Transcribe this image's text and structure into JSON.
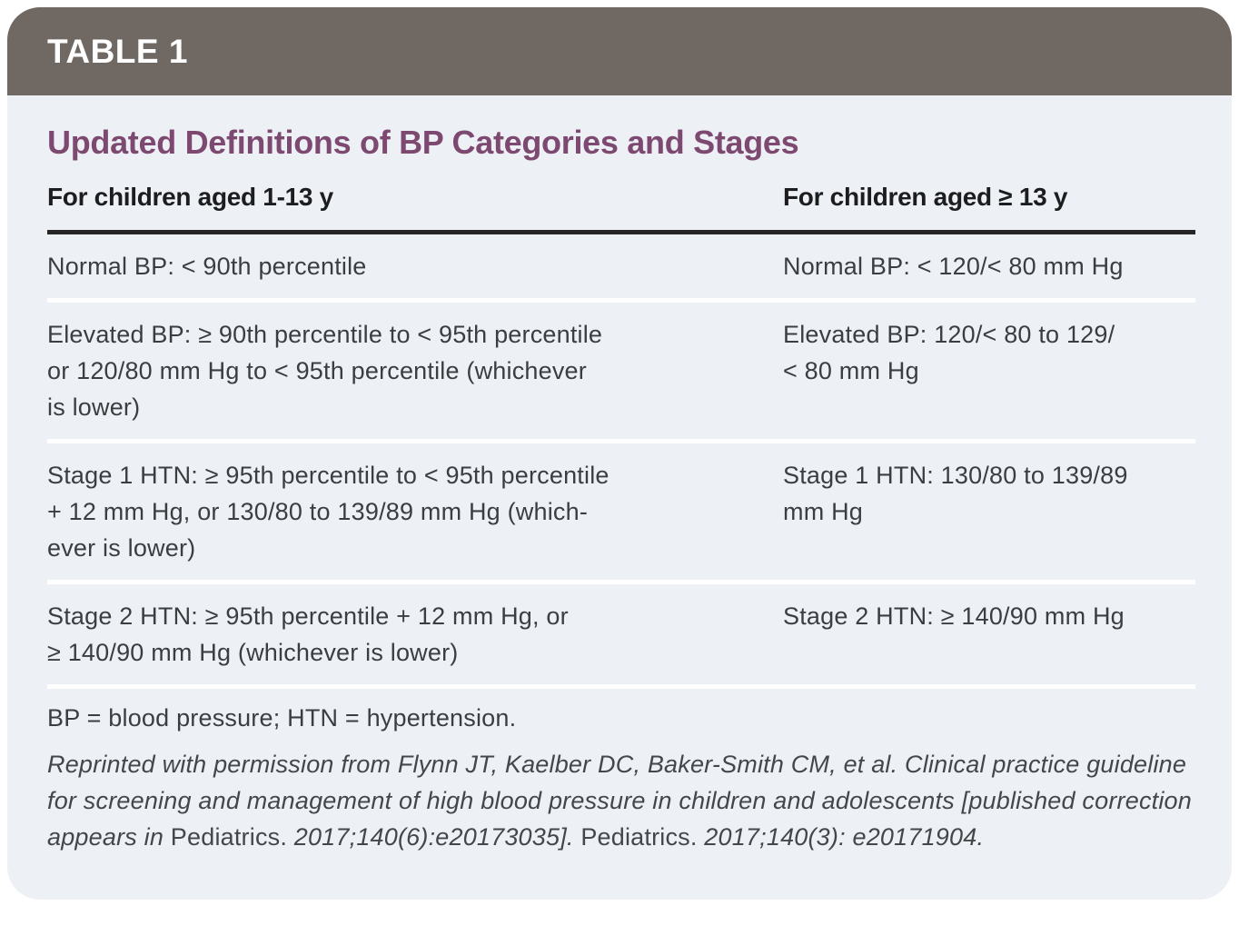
{
  "card": {
    "header_band": {
      "label": "TABLE 1",
      "bg_color": "#6F6863",
      "text_color": "#FFFFFF"
    },
    "body_bg_color": "#EDF1F5",
    "title": {
      "text": "Updated Definitions of BP Categories and Stages",
      "color": "#7D4970"
    },
    "table": {
      "column_headers": [
        "For children aged 1-13 y",
        "For children aged ≥ 13 y"
      ],
      "rows": [
        {
          "left": [
            "Normal BP: < 90th percentile"
          ],
          "right": [
            "Normal BP: < 120/< 80 mm Hg"
          ]
        },
        {
          "left": [
            "Elevated BP: ≥ 90th percentile to < 95th percentile",
            "or 120/80 mm Hg to < 95th percentile (whichever",
            "is lower)"
          ],
          "right": [
            "Elevated BP: 120/< 80 to 129/",
            "< 80 mm Hg"
          ]
        },
        {
          "left": [
            "Stage 1 HTN: ≥ 95th percentile to < 95th percentile",
            "+ 12 mm Hg, or 130/80 to 139/89 mm Hg (which-",
            "ever is lower)"
          ],
          "right": [
            "Stage 1 HTN: 130/80 to 139/89",
            "mm Hg"
          ]
        },
        {
          "left": [
            "Stage 2 HTN: ≥ 95th percentile + 12 mm Hg, or",
            "≥ 140/90 mm Hg (whichever is lower)"
          ],
          "right": [
            "Stage 2 HTN: ≥ 140/90 mm Hg"
          ]
        }
      ],
      "header_rule_color": "#262626",
      "row_separator_color": "#FFFFFF"
    },
    "footer": {
      "abbreviations": "BP = blood pressure; HTN = hypertension.",
      "citation_segments": [
        {
          "style": "italic",
          "text": "Reprinted with permission from Flynn JT, Kaelber DC, Baker-Smith CM, et al. Clinical practice guideline for screening and management of high blood pressure in children and adolescents [published correction appears in "
        },
        {
          "style": "roman",
          "text": "Pediatrics. "
        },
        {
          "style": "italic",
          "text": "2017;140(6):e20173035]. "
        },
        {
          "style": "roman",
          "text": "Pediatrics. "
        },
        {
          "style": "italic",
          "text": "2017;140(3): e20171904."
        }
      ]
    },
    "text_color": "#3B3E41"
  }
}
